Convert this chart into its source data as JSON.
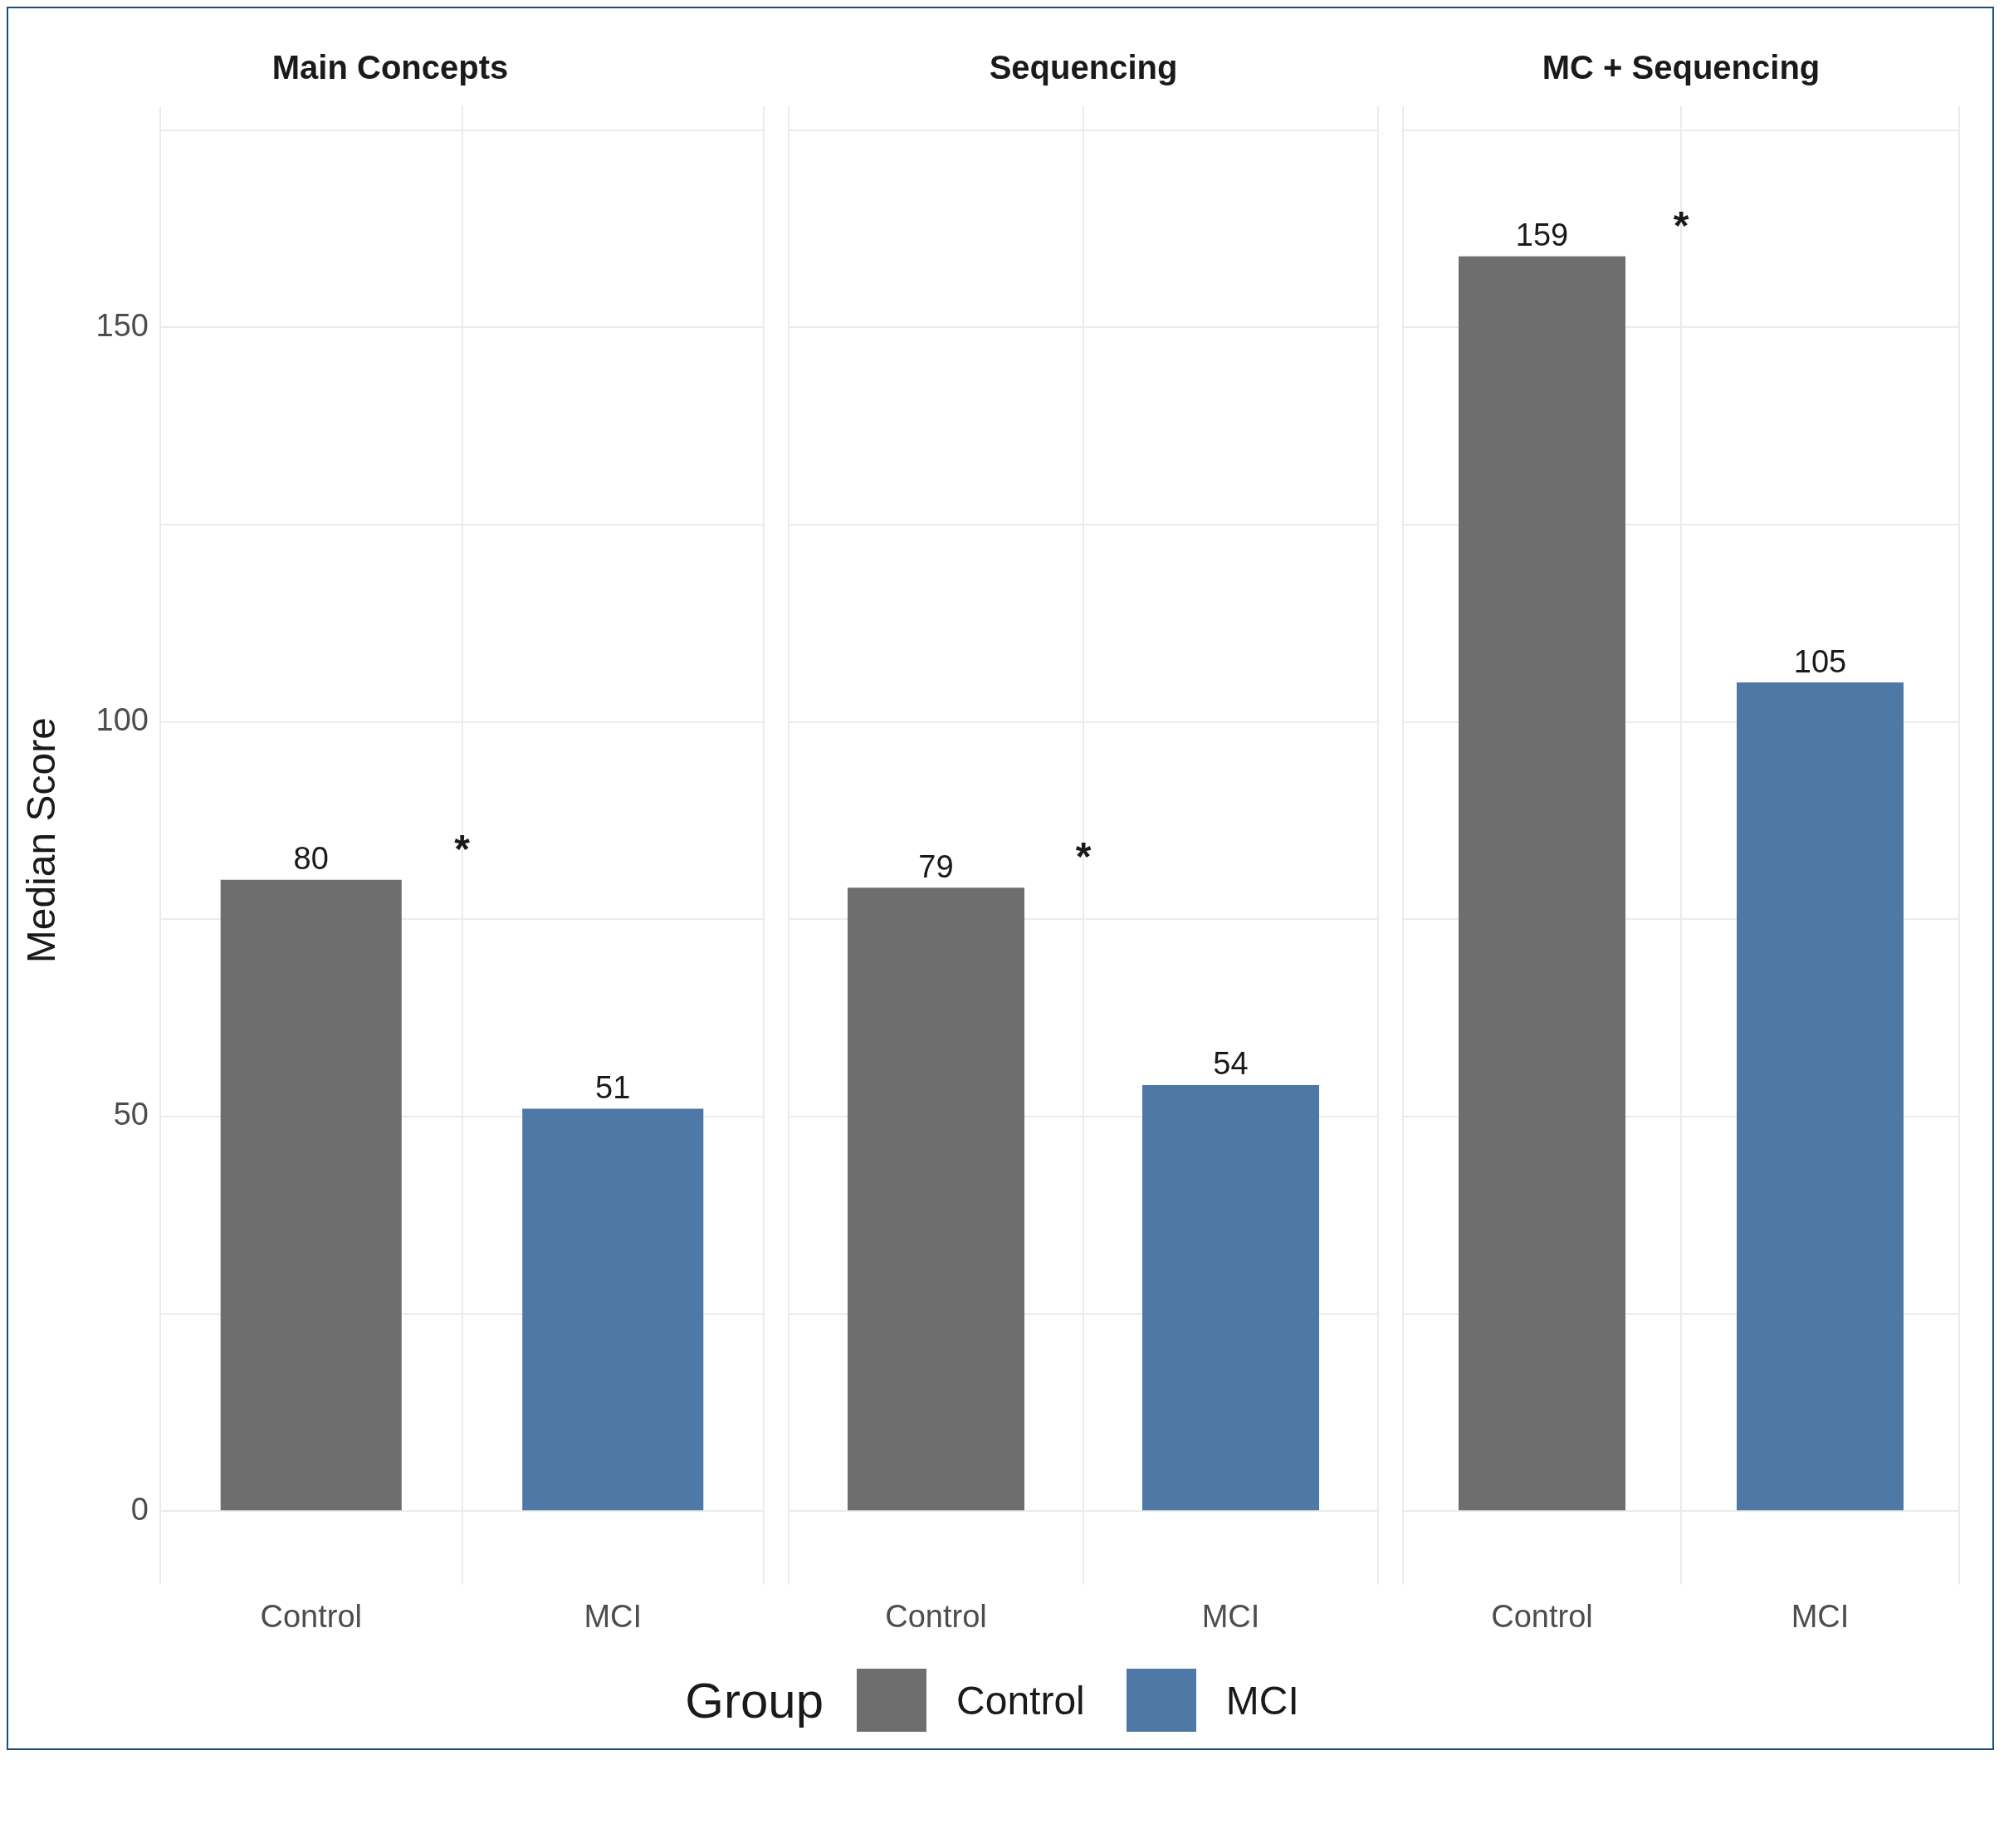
{
  "chart_data": [
    {
      "type": "bar",
      "title": "Main Concepts",
      "ylabel": "Median Score",
      "categories": [
        "Control",
        "MCI"
      ],
      "series": [
        {
          "name": "Control",
          "color": "#6e6e6e",
          "values": [
            80,
            null
          ]
        },
        {
          "name": "MCI",
          "color": "#4e78a6",
          "values": [
            null,
            51
          ]
        }
      ],
      "ylim": [
        -8,
        178
      ],
      "yticks": [
        0,
        {
          "value": 25,
          "label": null
        },
        50,
        {
          "value": 75,
          "label": null
        },
        100,
        {
          "value": 125,
          "label": null
        },
        150,
        {
          "value": 175,
          "label": null
        }
      ],
      "grid": true,
      "data_labels": true,
      "annotations": [
        "*"
      ],
      "legend": "bottom",
      "legend_title": "Group"
    },
    {
      "type": "bar",
      "title": "Sequencing",
      "categories": [
        "Control",
        "MCI"
      ],
      "series": [
        {
          "color": "#6e6e6e",
          "values": [
            79,
            null
          ]
        },
        {
          "color": "#4e78a6",
          "values": [
            null,
            54
          ]
        }
      ],
      "ylim": [
        -8,
        178
      ],
      "yticks": [
        0,
        {
          "value": 25,
          "label": null
        },
        50,
        {
          "value": 75,
          "label": null
        },
        100,
        {
          "value": 125,
          "label": null
        },
        150,
        {
          "value": 175,
          "label": null
        }
      ],
      "grid": true,
      "data_labels": true,
      "annotations": [
        "*"
      ],
      "tick_labels": "x"
    },
    {
      "type": "bar",
      "title": "MC + Sequencing",
      "categories": [
        "Control",
        "MCI"
      ],
      "series": [
        {
          "color": "#6e6e6e",
          "values": [
            159,
            null
          ]
        },
        {
          "color": "#4e78a6",
          "values": [
            null,
            105
          ]
        }
      ],
      "ylim": [
        -8,
        178
      ],
      "yticks": [
        0,
        {
          "value": 25,
          "label": null
        },
        50,
        {
          "value": 75,
          "label": null
        },
        100,
        {
          "value": 125,
          "label": null
        },
        150,
        {
          "value": 175,
          "label": null
        }
      ],
      "grid": true,
      "data_labels": true,
      "annotations": [
        "*"
      ],
      "tick_labels": "x"
    }
  ]
}
